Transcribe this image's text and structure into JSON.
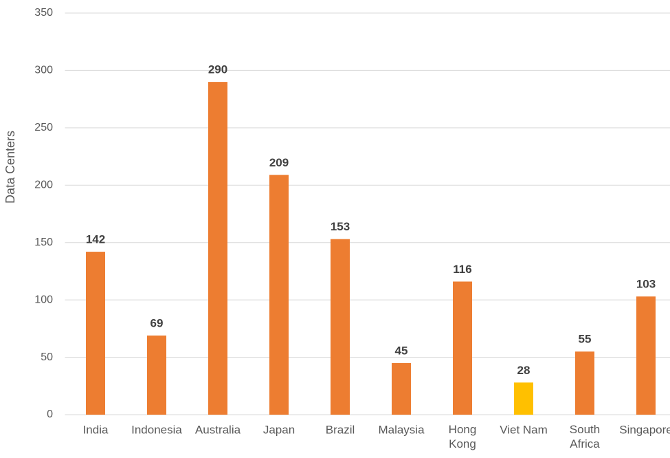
{
  "chart_data": {
    "type": "bar",
    "y_label": "Data Centers",
    "categories": [
      "India",
      "Indonesia",
      "Australia",
      "Japan",
      "Brazil",
      "Malaysia",
      "Hong\nKong",
      "Viet Nam",
      "South\nAfrica",
      "Singapore"
    ],
    "values": [
      142,
      69,
      290,
      209,
      153,
      45,
      116,
      28,
      55,
      103
    ],
    "colors": [
      "#ed7d31",
      "#ed7d31",
      "#ed7d31",
      "#ed7d31",
      "#ed7d31",
      "#ed7d31",
      "#ed7d31",
      "#ffc000",
      "#ed7d31",
      "#ed7d31"
    ],
    "ylim": [
      0,
      350
    ],
    "yticks": [
      0,
      50,
      100,
      150,
      200,
      250,
      300,
      350
    ],
    "grid": true
  }
}
